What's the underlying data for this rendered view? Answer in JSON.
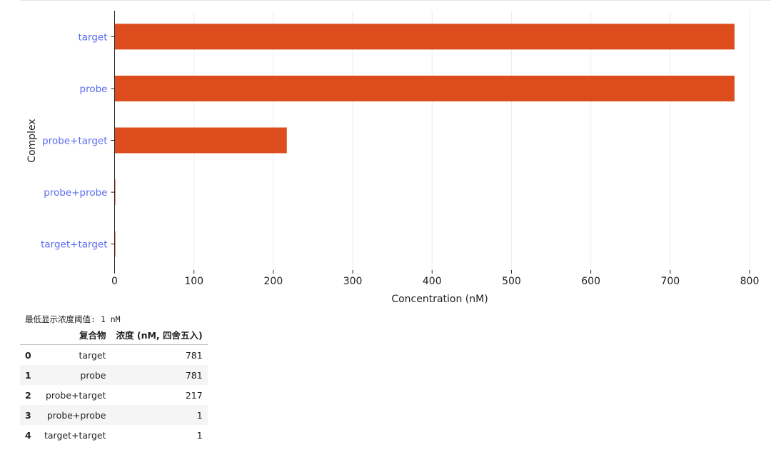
{
  "chart_data": {
    "type": "bar",
    "orientation": "horizontal",
    "categories": [
      "target",
      "probe",
      "probe+target",
      "probe+probe",
      "target+target"
    ],
    "values": [
      781,
      781,
      217,
      1,
      1
    ],
    "xlabel": "Concentration (nM)",
    "ylabel": "Complex",
    "xlim": [
      0,
      800
    ],
    "xticks": [
      0,
      100,
      200,
      300,
      400,
      500,
      600,
      700,
      800
    ],
    "grid": "vertical",
    "bar_color": "#dc4c1c",
    "category_label_color": "#5b6cf0"
  },
  "threshold_text": "最低显示浓度阈值: 1 nM",
  "table": {
    "headers": [
      "",
      "复合物",
      "浓度 (nM, 四舍五入)"
    ],
    "rows": [
      {
        "index": "0",
        "name": "target",
        "value": "781"
      },
      {
        "index": "1",
        "name": "probe",
        "value": "781"
      },
      {
        "index": "2",
        "name": "probe+target",
        "value": "217"
      },
      {
        "index": "3",
        "name": "probe+probe",
        "value": "1"
      },
      {
        "index": "4",
        "name": "target+target",
        "value": "1"
      }
    ]
  }
}
